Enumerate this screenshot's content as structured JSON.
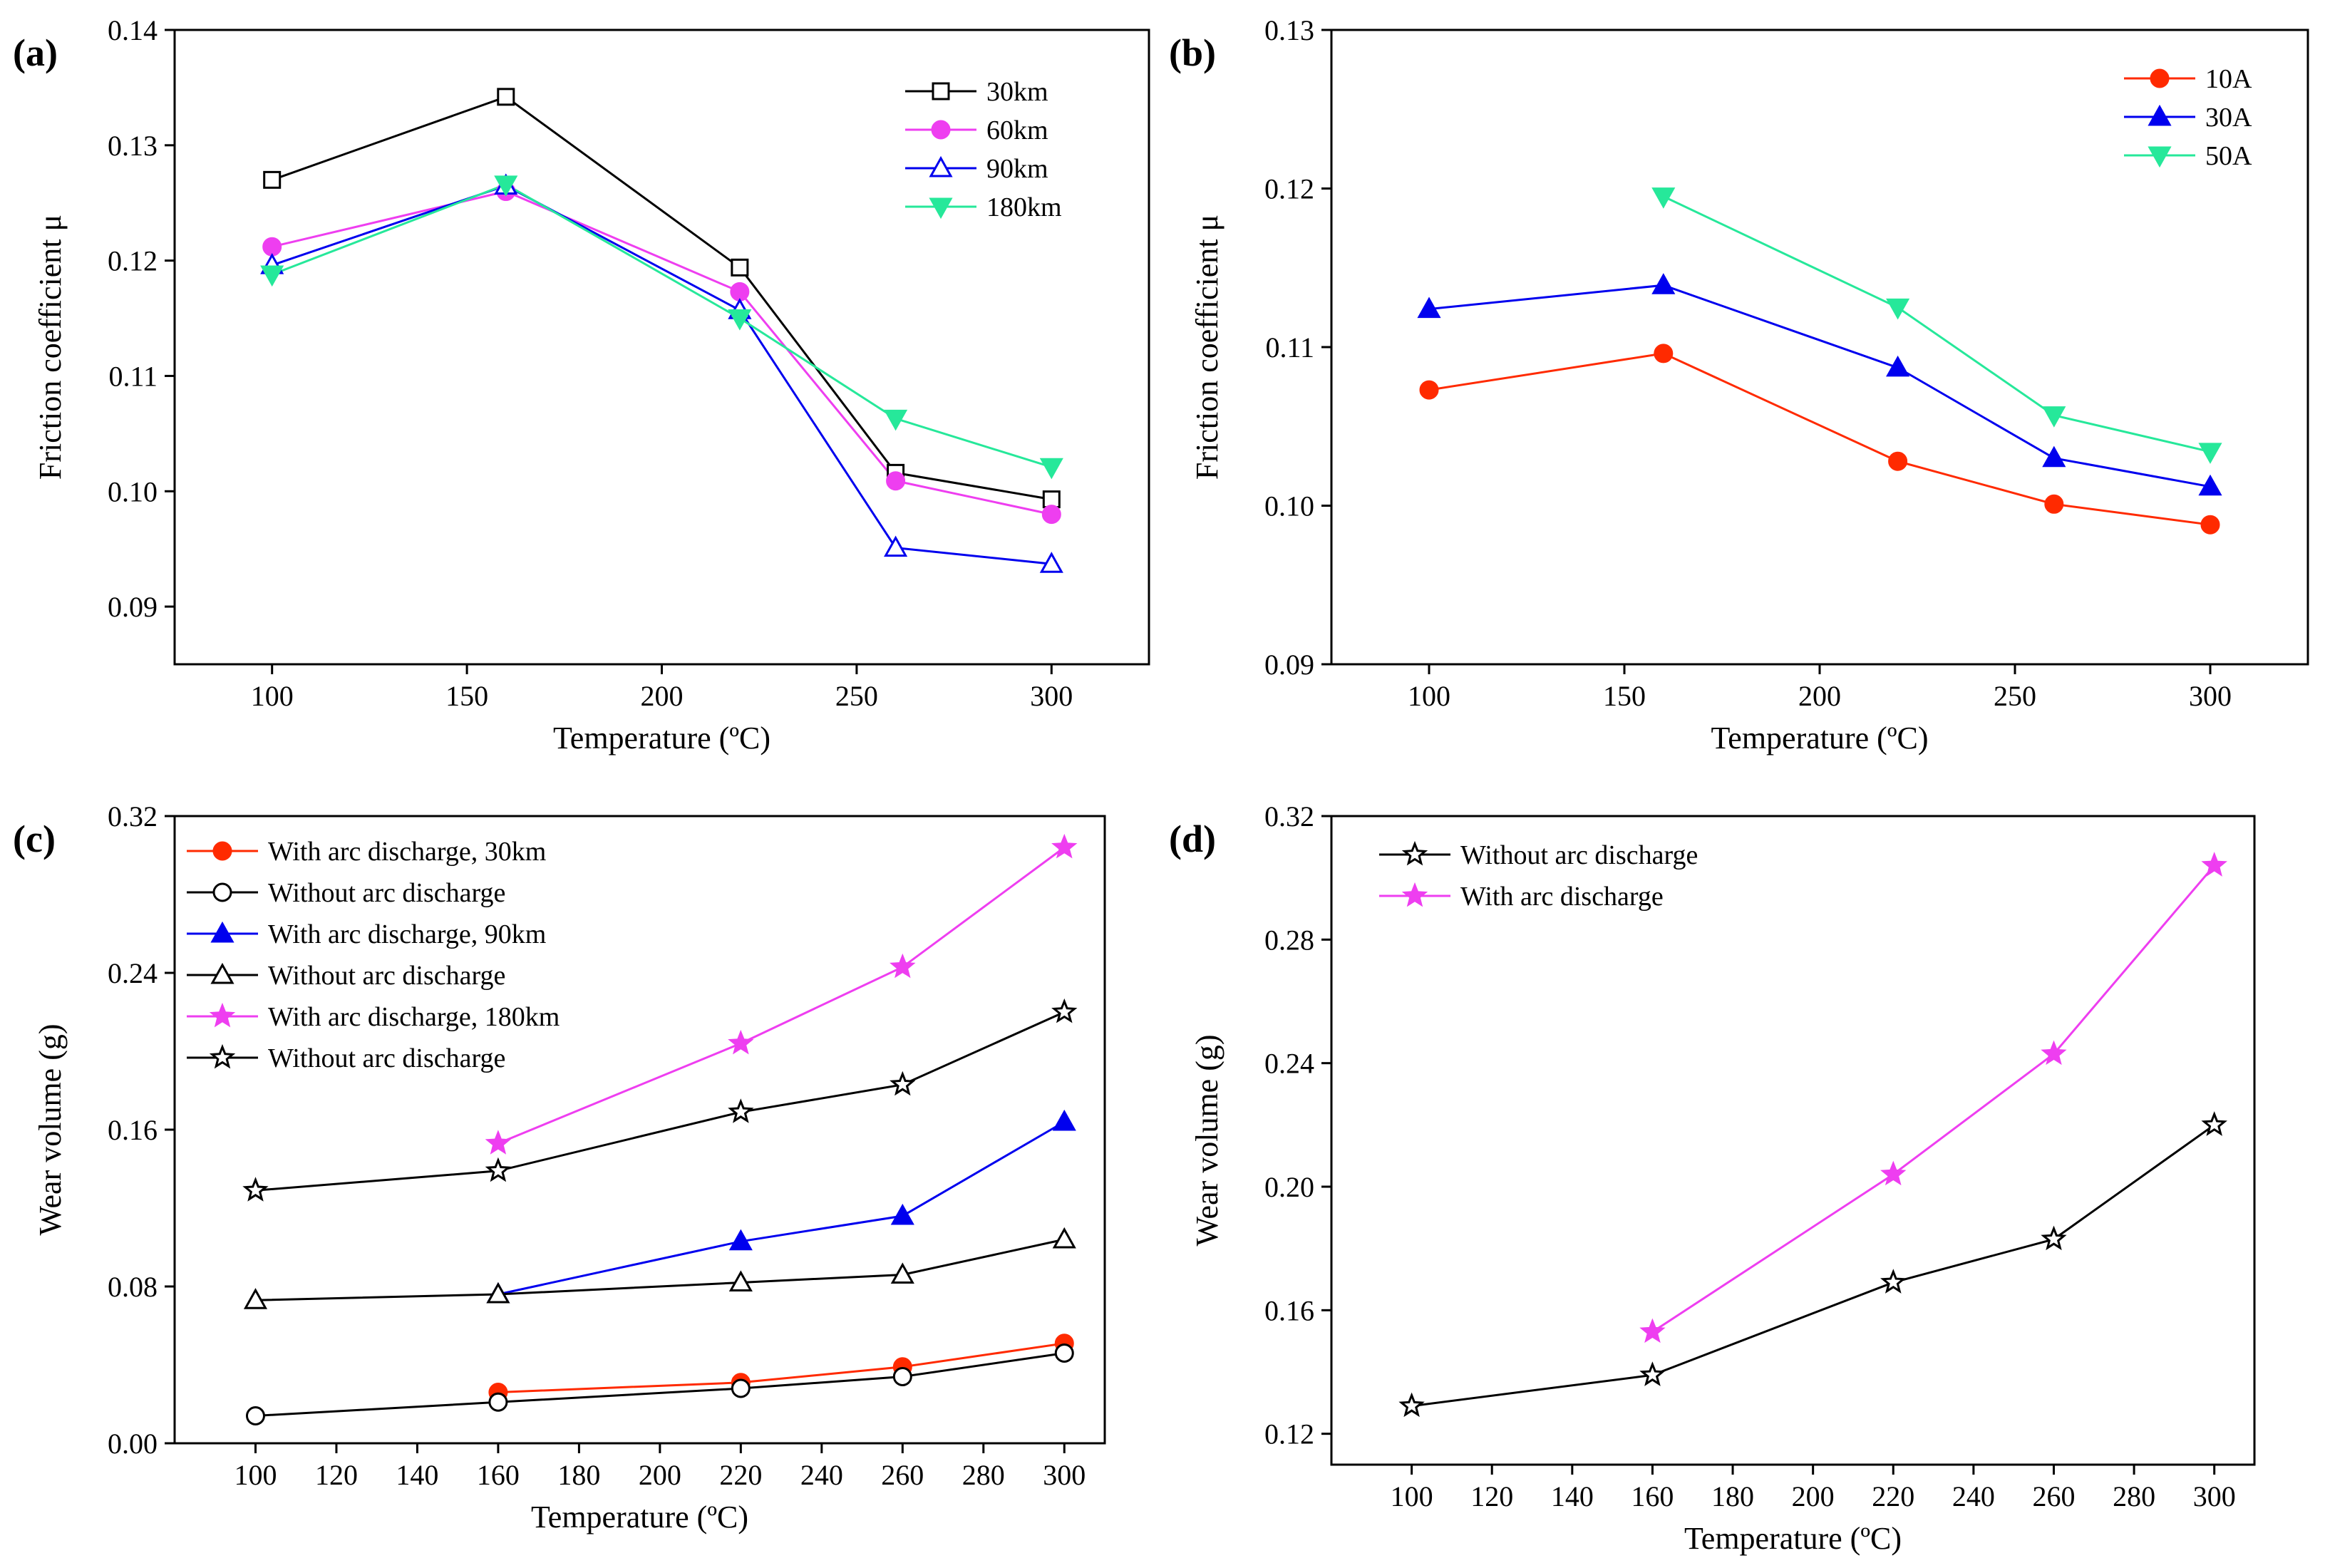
{
  "figure": {
    "colors": {
      "black": "#000000",
      "magenta": "#ee3ef0",
      "blue": "#0000ee",
      "green": "#26e89a",
      "red": "#ff2a00"
    }
  },
  "chart_data": [
    {
      "id": "a",
      "panel_label": "(a)",
      "type": "line",
      "xlabel": "Temperature (ºC)",
      "ylabel": "Friction coefficient μ",
      "xlim": [
        75,
        325
      ],
      "ylim": [
        0.085,
        0.14
      ],
      "xticks": [
        100,
        150,
        200,
        250,
        300
      ],
      "xtick_labels": [
        "100",
        "150",
        "200",
        "250",
        "300"
      ],
      "yticks": [
        0.09,
        0.1,
        0.11,
        0.12,
        0.13,
        0.14
      ],
      "ytick_labels": [
        "0.09",
        "0.10",
        "0.11",
        "0.12",
        "0.13",
        "0.14"
      ],
      "legend_position": "top-right",
      "series": [
        {
          "name": "30km",
          "color": "#000000",
          "marker": "square",
          "filled": false,
          "x": [
            100,
            160,
            220,
            260,
            300
          ],
          "y": [
            0.127,
            0.1342,
            0.1194,
            0.1016,
            0.0993
          ]
        },
        {
          "name": "60km",
          "color": "#ee3ef0",
          "marker": "circle",
          "filled": true,
          "x": [
            100,
            160,
            220,
            260,
            300
          ],
          "y": [
            0.1212,
            0.126,
            0.1173,
            0.1009,
            0.098
          ]
        },
        {
          "name": "90km",
          "color": "#0000ee",
          "marker": "triangle-up",
          "filled": false,
          "x": [
            100,
            160,
            220,
            260,
            300
          ],
          "y": [
            0.1196,
            0.1265,
            0.1157,
            0.0951,
            0.0937
          ]
        },
        {
          "name": "180km",
          "color": "#26e89a",
          "marker": "triangle-down",
          "filled": true,
          "x": [
            100,
            160,
            220,
            260,
            300
          ],
          "y": [
            0.1188,
            0.1266,
            0.115,
            0.1063,
            0.1021
          ]
        }
      ]
    },
    {
      "id": "b",
      "panel_label": "(b)",
      "type": "line",
      "xlabel": "Temperature (ºC)",
      "ylabel": "Friction coefficient μ",
      "xlim": [
        75,
        325
      ],
      "ylim": [
        0.09,
        0.13
      ],
      "xticks": [
        100,
        150,
        200,
        250,
        300
      ],
      "xtick_labels": [
        "100",
        "150",
        "200",
        "250",
        "300"
      ],
      "yticks": [
        0.09,
        0.1,
        0.11,
        0.12,
        0.13
      ],
      "ytick_labels": [
        "0.09",
        "0.10",
        "0.11",
        "0.12",
        "0.13"
      ],
      "legend_position": "top-right",
      "series": [
        {
          "name": "10A",
          "color": "#ff2a00",
          "marker": "circle",
          "filled": true,
          "x": [
            100,
            160,
            220,
            260,
            300
          ],
          "y": [
            0.1073,
            0.1096,
            0.1028,
            0.1001,
            0.0988
          ]
        },
        {
          "name": "30A",
          "color": "#0000ee",
          "marker": "triangle-up",
          "filled": true,
          "x": [
            100,
            160,
            220,
            260,
            300
          ],
          "y": [
            0.1124,
            0.1139,
            0.1087,
            0.103,
            0.1012
          ]
        },
        {
          "name": "50A",
          "color": "#26e89a",
          "marker": "triangle-down",
          "filled": true,
          "x": [
            160,
            220,
            260,
            300
          ],
          "y": [
            0.1195,
            0.1125,
            0.1057,
            0.1034
          ]
        }
      ]
    },
    {
      "id": "c",
      "panel_label": "(c)",
      "type": "line",
      "xlabel": "Temperature (ºC)",
      "ylabel": "Wear volume (g)",
      "xlim": [
        80,
        310
      ],
      "ylim": [
        0.0,
        0.32
      ],
      "xticks": [
        100,
        120,
        140,
        160,
        180,
        200,
        220,
        240,
        260,
        280,
        300
      ],
      "xtick_labels": [
        "100",
        "120",
        "140",
        "160",
        "180",
        "200",
        "220",
        "240",
        "260",
        "280",
        "300"
      ],
      "yticks": [
        0.0,
        0.08,
        0.16,
        0.24,
        0.32
      ],
      "ytick_labels": [
        "0.00",
        "0.08",
        "0.16",
        "0.24",
        "0.32"
      ],
      "legend_position": "top-left",
      "series": [
        {
          "name": "With arc discharge, 30km",
          "color": "#ff2a00",
          "marker": "circle",
          "filled": true,
          "x": [
            160,
            220,
            260,
            300
          ],
          "y": [
            0.026,
            0.031,
            0.039,
            0.051
          ]
        },
        {
          "name": "Without arc discharge",
          "color": "#000000",
          "marker": "circle",
          "filled": false,
          "x": [
            100,
            160,
            220,
            260,
            300
          ],
          "y": [
            0.014,
            0.021,
            0.028,
            0.034,
            0.046
          ]
        },
        {
          "name": "With arc discharge, 90km",
          "color": "#0000ee",
          "marker": "triangle-up",
          "filled": true,
          "x": [
            160,
            220,
            260,
            300
          ],
          "y": [
            0.076,
            0.103,
            0.116,
            0.164
          ]
        },
        {
          "name": "Without arc discharge",
          "color": "#000000",
          "marker": "triangle-up",
          "filled": false,
          "x": [
            100,
            160,
            220,
            260,
            300
          ],
          "y": [
            0.073,
            0.076,
            0.082,
            0.086,
            0.104
          ]
        },
        {
          "name": "With arc discharge, 180km",
          "color": "#ee3ef0",
          "marker": "star",
          "filled": true,
          "x": [
            160,
            220,
            260,
            300
          ],
          "y": [
            0.153,
            0.204,
            0.243,
            0.304
          ]
        },
        {
          "name": "Without arc discharge",
          "color": "#000000",
          "marker": "star",
          "filled": false,
          "x": [
            100,
            160,
            220,
            260,
            300
          ],
          "y": [
            0.129,
            0.139,
            0.169,
            0.183,
            0.22
          ]
        }
      ]
    },
    {
      "id": "d",
      "panel_label": "(d)",
      "type": "line",
      "xlabel": "Temperature (ºC)",
      "ylabel": "Wear volume (g)",
      "xlim": [
        80,
        310
      ],
      "ylim": [
        0.11,
        0.32
      ],
      "xticks": [
        100,
        120,
        140,
        160,
        180,
        200,
        220,
        240,
        260,
        280,
        300
      ],
      "xtick_labels": [
        "100",
        "120",
        "140",
        "160",
        "180",
        "200",
        "220",
        "240",
        "260",
        "280",
        "300"
      ],
      "yticks": [
        0.12,
        0.16,
        0.2,
        0.24,
        0.28,
        0.32
      ],
      "ytick_labels": [
        "0.12",
        "0.16",
        "0.20",
        "0.24",
        "0.28",
        "0.32"
      ],
      "legend_position": "top-left",
      "series": [
        {
          "name": "Without arc discharge",
          "color": "#000000",
          "marker": "star",
          "filled": false,
          "x": [
            100,
            160,
            220,
            260,
            300
          ],
          "y": [
            0.129,
            0.139,
            0.169,
            0.183,
            0.22
          ]
        },
        {
          "name": "With arc discharge",
          "color": "#ee3ef0",
          "marker": "star",
          "filled": true,
          "x": [
            160,
            220,
            260,
            300
          ],
          "y": [
            0.153,
            0.204,
            0.243,
            0.304
          ]
        }
      ]
    }
  ]
}
